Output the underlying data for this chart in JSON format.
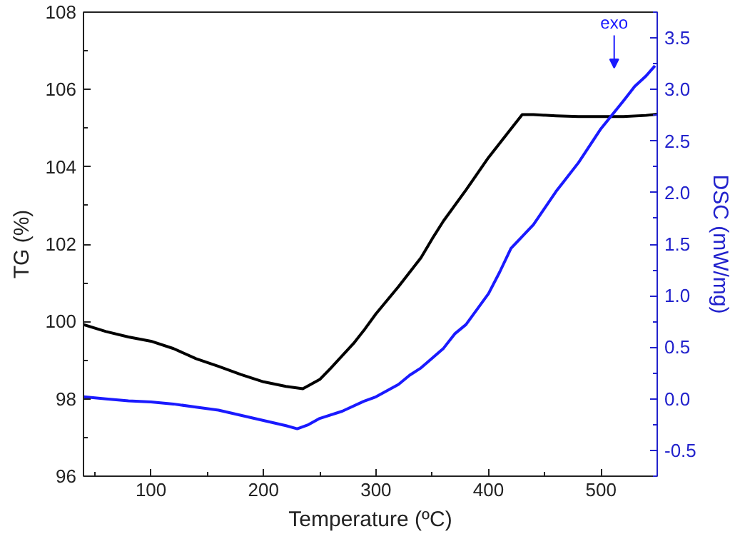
{
  "chart_data": {
    "type": "line",
    "xlabel": "Temperature (ºC)",
    "ylabel": "TG (%)",
    "y2label": "DSC (mW/mg)",
    "annotations": [
      "exo"
    ],
    "xlim": [
      40,
      550
    ],
    "xticks": [
      100,
      200,
      300,
      400,
      500
    ],
    "ylim": [
      96,
      108
    ],
    "yticks": [
      96,
      98,
      100,
      102,
      104,
      106,
      108
    ],
    "y2lim": [
      -0.75,
      3.75
    ],
    "y2ticks": [
      -0.5,
      {
        "value": 0,
        "label": "0.0"
      },
      0.5,
      {
        "value": 1,
        "label": "1.0"
      },
      1.5,
      {
        "value": 2,
        "label": "2.0"
      },
      2.5,
      {
        "value": 3,
        "label": "3.0"
      },
      3.5
    ],
    "grid": false,
    "marker": "none",
    "line_style": "solid",
    "series": [
      {
        "color": "#000000",
        "x": [
          40,
          60,
          80,
          100,
          120,
          140,
          160,
          180,
          200,
          220,
          235,
          250,
          260,
          280,
          290,
          300,
          320,
          340,
          350,
          360,
          380,
          400,
          420,
          430,
          440,
          460,
          480,
          500,
          520,
          540,
          550
        ],
        "values": [
          99.92,
          99.74,
          99.6,
          99.49,
          99.3,
          99.04,
          98.84,
          98.63,
          98.44,
          98.32,
          98.26,
          98.5,
          98.8,
          99.43,
          99.8,
          100.2,
          100.9,
          101.65,
          102.14,
          102.6,
          103.4,
          104.24,
          104.98,
          105.35,
          105.35,
          105.32,
          105.3,
          105.3,
          105.3,
          105.33,
          105.36
        ]
      },
      {
        "color": "#1a1aff",
        "axis": "y2",
        "x": [
          40,
          60,
          80,
          100,
          120,
          140,
          160,
          180,
          200,
          220,
          230,
          240,
          250,
          270,
          290,
          300,
          320,
          330,
          340,
          360,
          370,
          380,
          400,
          410,
          420,
          440,
          460,
          480,
          500,
          520,
          530,
          540,
          548
        ],
        "values": [
          0.02,
          0.0,
          -0.02,
          -0.03,
          -0.05,
          -0.08,
          -0.11,
          -0.16,
          -0.21,
          -0.26,
          -0.29,
          -0.25,
          -0.19,
          -0.12,
          -0.02,
          0.02,
          0.14,
          0.23,
          0.3,
          0.49,
          0.63,
          0.72,
          1.02,
          1.23,
          1.46,
          1.69,
          2.01,
          2.29,
          2.62,
          2.89,
          3.03,
          3.13,
          3.23
        ]
      }
    ]
  }
}
